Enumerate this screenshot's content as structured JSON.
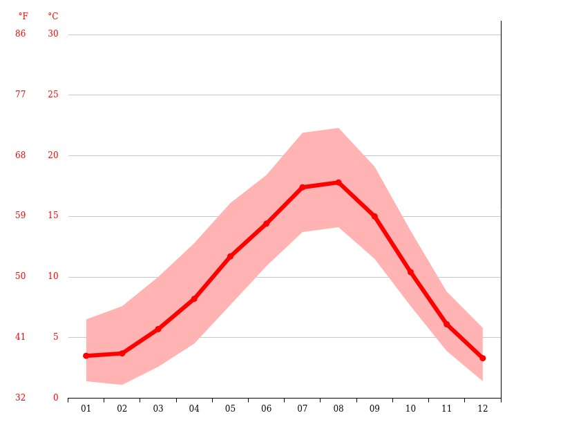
{
  "chart_data": {
    "type": "line",
    "categories": [
      "01",
      "02",
      "03",
      "04",
      "05",
      "06",
      "07",
      "08",
      "09",
      "10",
      "11",
      "12"
    ],
    "y_label": "°C",
    "y2_label": "°F",
    "ylim": [
      0,
      30
    ],
    "yticks": [
      0,
      5,
      10,
      15,
      20,
      25,
      30
    ],
    "y2lim": [
      32,
      86
    ],
    "y2ticks": [
      32,
      41,
      50,
      59,
      68,
      77,
      86
    ],
    "grid": true,
    "series": [
      {
        "type": "range",
        "low": [
          1.4,
          1.1,
          2.6,
          4.5,
          7.7,
          10.9,
          13.7,
          14.1,
          11.5,
          7.6,
          3.9,
          1.4
        ],
        "high": [
          6.5,
          7.6,
          10.0,
          12.8,
          16.1,
          18.4,
          21.9,
          22.3,
          19.1,
          13.8,
          8.8,
          5.8
        ],
        "color": "#ffb3b3"
      },
      {
        "type": "line",
        "values": [
          3.5,
          3.7,
          5.7,
          8.2,
          11.7,
          14.4,
          17.4,
          17.8,
          15.0,
          10.4,
          6.1,
          3.3
        ],
        "color": "#ff0000",
        "marker": "circle"
      }
    ]
  }
}
